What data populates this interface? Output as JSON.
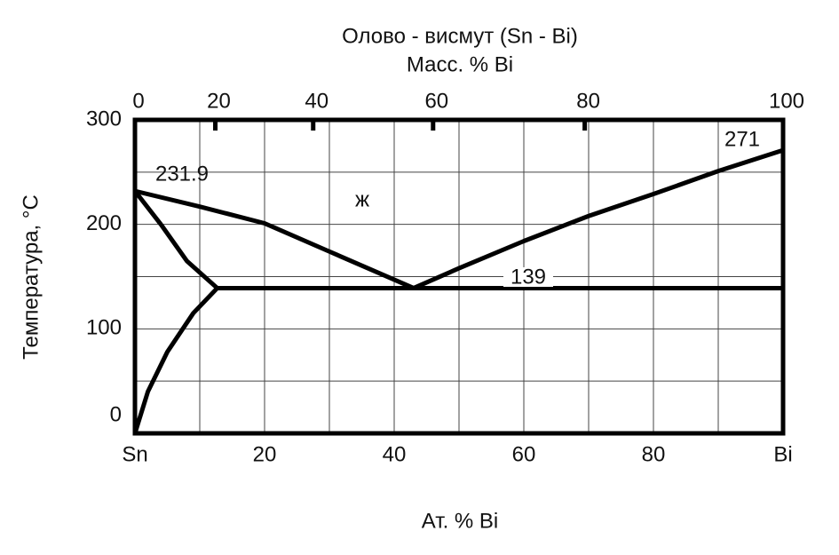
{
  "chart_data": {
    "type": "line",
    "title": "Олово - висмут (Sn - Bi)",
    "top_axis": {
      "label": "Масс. % Bi",
      "ticks": [
        0,
        20,
        40,
        60,
        80,
        100
      ],
      "positions": [
        0,
        12.4,
        27.5,
        46,
        69.4,
        100
      ]
    },
    "xlabel": "Ат. % Bi",
    "ylabel": "Температура,  °C",
    "xlim": [
      0,
      100
    ],
    "xticks": [
      {
        "value": 0,
        "label": "Sn"
      },
      20,
      40,
      60,
      80,
      {
        "value": 100,
        "label": "Bi"
      }
    ],
    "xgrid": [
      10,
      20,
      30,
      40,
      50,
      60,
      70,
      80,
      90
    ],
    "ylim": [
      0,
      300
    ],
    "yticks": [
      0,
      100,
      200,
      300
    ],
    "ygrid": [
      50,
      100,
      150,
      200,
      250
    ],
    "grid": true,
    "series": [
      {
        "name": "liquidus-sn",
        "color": "#000000",
        "x": [
          0,
          10,
          20,
          30,
          43
        ],
        "values": [
          231.9,
          217,
          201,
          174,
          139
        ]
      },
      {
        "name": "liquidus-bi",
        "color": "#000000",
        "x": [
          43,
          50,
          60,
          70,
          80,
          90,
          100
        ],
        "values": [
          139,
          158,
          184,
          208,
          229,
          251,
          271
        ]
      },
      {
        "name": "solidus",
        "color": "#000000",
        "x": [
          0,
          4,
          8,
          12.7
        ],
        "values": [
          231.9,
          200,
          165,
          139
        ]
      },
      {
        "name": "solvus",
        "color": "#000000",
        "x": [
          0,
          2,
          5,
          9,
          12.7
        ],
        "values": [
          0,
          40,
          78,
          115,
          139
        ]
      },
      {
        "name": "eutectic",
        "color": "#000000",
        "x": [
          12.7,
          100
        ],
        "values": [
          139,
          139
        ]
      }
    ],
    "annotations": [
      "231.9",
      "271",
      "139",
      "ж"
    ]
  }
}
